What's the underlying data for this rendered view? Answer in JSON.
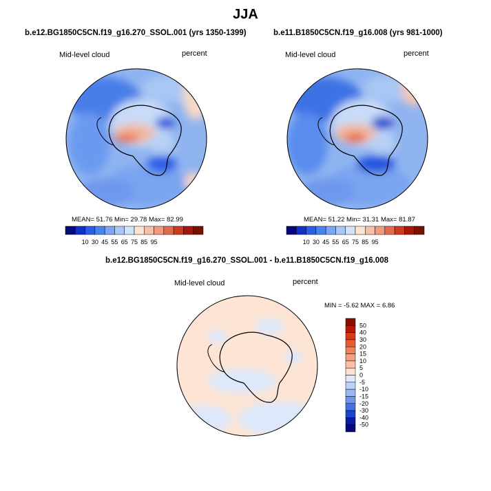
{
  "title": "JJA",
  "panels": [
    {
      "case": "b.e12.BG1850C5CN.f19_g16.270_SSOL.001 (yrs 1350-1399)",
      "field": "Mid-level cloud",
      "units": "percent",
      "stats": "MEAN=  51.76  Min=  29.78  Max=  82.99"
    },
    {
      "case": "b.e11.B1850C5CN.f19_g16.008 (yrs 981-1000)",
      "field": "Mid-level cloud",
      "units": "percent",
      "stats": "MEAN=  51.22  Min=  31.31  Max=  81.87"
    }
  ],
  "diff": {
    "case": "b.e12.BG1850C5CN.f19_g16.270_SSOL.001 - b.e11.B1850C5CN.f19_g16.008",
    "field": "Mid-level cloud",
    "units": "percent",
    "stats": "MIN =  -5.62  MAX =   6.86"
  },
  "colorbar_abs": {
    "labels": [
      "10",
      "30",
      "45",
      "55",
      "65",
      "75",
      "85",
      "95"
    ],
    "colors": [
      "#08087a",
      "#1030c8",
      "#2a5ee8",
      "#4a82f0",
      "#7aa6f2",
      "#a8c6f6",
      "#d2e2fa",
      "#fbe4d4",
      "#f6c0a6",
      "#f09a80",
      "#e06c50",
      "#cc3c22",
      "#a81608",
      "#781000"
    ]
  },
  "colorbar_diff": {
    "labels": [
      "50",
      "40",
      "30",
      "20",
      "15",
      "10",
      "5",
      "0",
      "-5",
      "-10",
      "-15",
      "-20",
      "-30",
      "-40",
      "-50"
    ],
    "colors": [
      "#881000",
      "#b81a08",
      "#d83a18",
      "#e85c34",
      "#f2805c",
      "#f6a080",
      "#fbc0a8",
      "#fde2d2",
      "#dde8fa",
      "#bcd2f6",
      "#9ab8f2",
      "#6e98ec",
      "#4472e4",
      "#1c44cc",
      "#0a1ca0",
      "#080878"
    ]
  }
}
